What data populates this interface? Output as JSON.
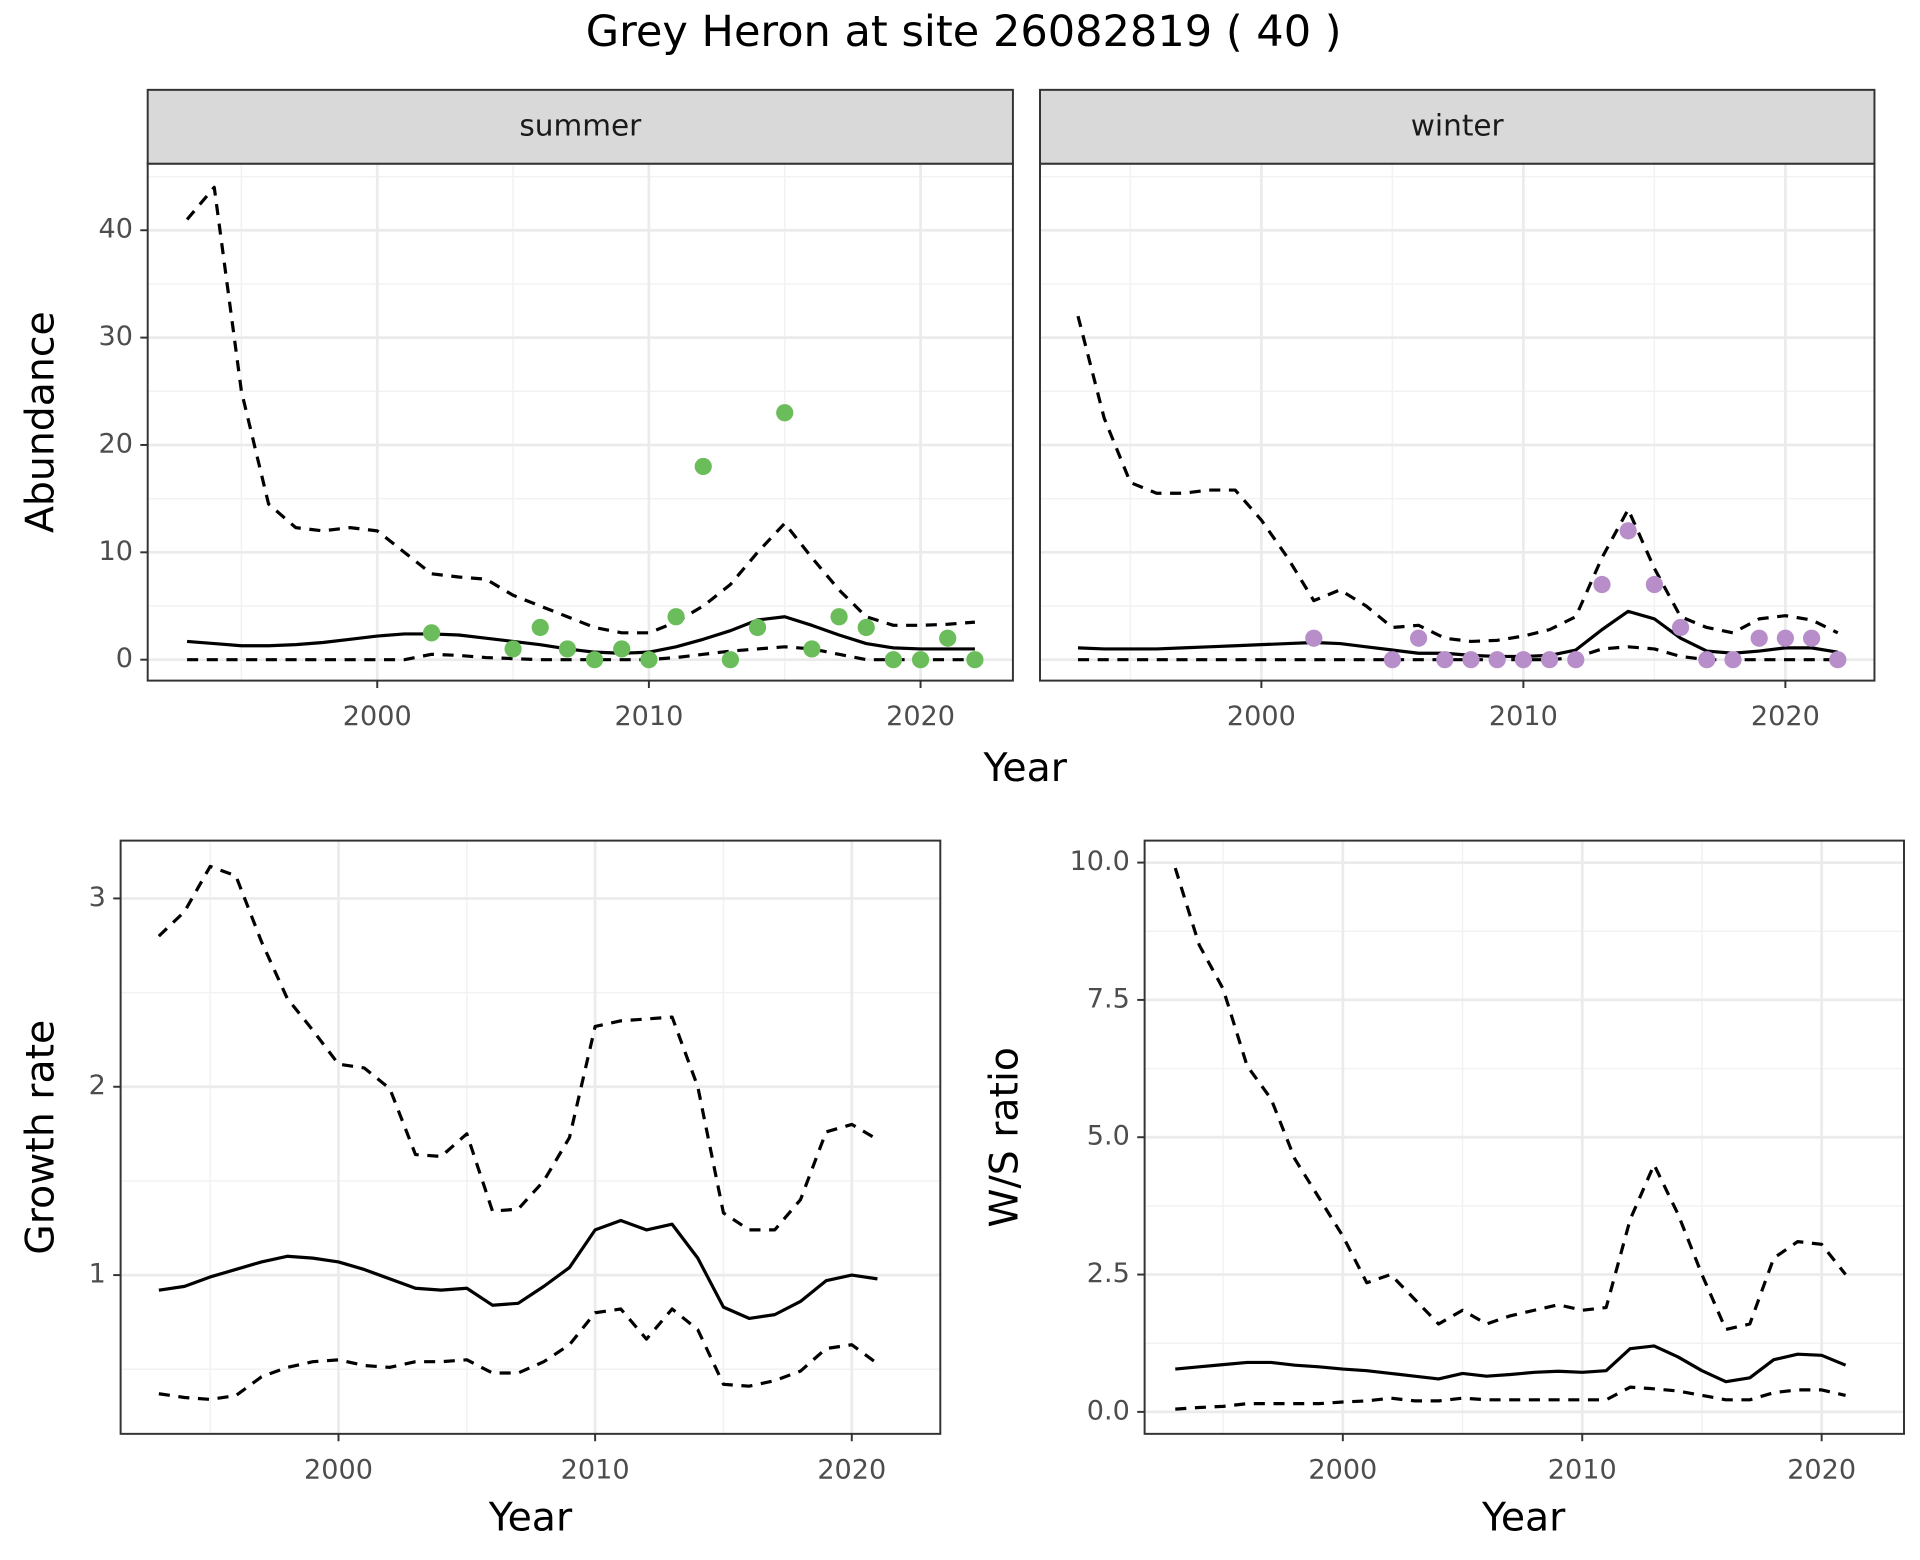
{
  "title": "Grey Heron at site 26082819 ( 40 )",
  "chart_data": [
    {
      "type": "facet",
      "ylabel": "Abundance",
      "xlabel": "Year",
      "xlim": [
        1991.55,
        2023.4
      ],
      "ylim": [
        -1.95,
        46.2
      ],
      "xticks": [
        2000,
        2010,
        2020
      ],
      "yticks": [
        0,
        10,
        20,
        30,
        40
      ],
      "minor_xticks": [
        1995,
        2005,
        2015
      ],
      "minor_yticks": [
        5,
        15,
        25,
        35,
        45
      ],
      "grid": true,
      "facets": [
        {
          "title": "summer",
          "x": [
            1993,
            1994,
            1995,
            1996,
            1997,
            1998,
            1999,
            2000,
            2001,
            2002,
            2003,
            2004,
            2005,
            2006,
            2007,
            2008,
            2009,
            2010,
            2011,
            2012,
            2013,
            2014,
            2015,
            2016,
            2017,
            2018,
            2019,
            2020,
            2021,
            2022
          ],
          "series": [
            {
              "style": "dashed",
              "color": "#000000",
              "values": [
                41,
                44,
                25,
                14.5,
                12.3,
                12,
                12.3,
                12,
                10,
                8,
                7.7,
                7.5,
                6,
                5,
                4,
                3,
                2.5,
                2.5,
                3.5,
                5,
                7,
                10,
                12.7,
                9.5,
                6.5,
                4,
                3.2,
                3.2,
                3.3,
                3.5
              ]
            },
            {
              "style": "solid",
              "color": "#000000",
              "values": [
                1.7,
                1.5,
                1.3,
                1.3,
                1.4,
                1.6,
                1.9,
                2.2,
                2.4,
                2.4,
                2.3,
                2.0,
                1.7,
                1.4,
                1.0,
                0.7,
                0.6,
                0.7,
                1.2,
                1.9,
                2.7,
                3.7,
                4.0,
                3.2,
                2.3,
                1.5,
                1.1,
                1.0,
                1.0,
                1.0
              ]
            },
            {
              "style": "dashed",
              "color": "#000000",
              "values": [
                0,
                0,
                0,
                0,
                0,
                0,
                0,
                0,
                0,
                0.5,
                0.4,
                0.2,
                0.1,
                0,
                0,
                0,
                0,
                0,
                0.2,
                0.5,
                0.8,
                1.0,
                1.2,
                1.0,
                0.5,
                0,
                0,
                0,
                0,
                0
              ]
            },
            {
              "style": "points",
              "color": "#6abd5a",
              "x": [
                2002,
                2005,
                2006,
                2007,
                2008,
                2009,
                2010,
                2011,
                2012,
                2013,
                2014,
                2015,
                2016,
                2017,
                2018,
                2019,
                2020,
                2021,
                2022
              ],
              "values": [
                2.5,
                1,
                3,
                1,
                0,
                1,
                0,
                4,
                18,
                0,
                3,
                23,
                1,
                4,
                3,
                0,
                0,
                2,
                0
              ]
            }
          ]
        },
        {
          "title": "winter",
          "x": [
            1993,
            1994,
            1995,
            1996,
            1997,
            1998,
            1999,
            2000,
            2001,
            2002,
            2003,
            2004,
            2005,
            2006,
            2007,
            2008,
            2009,
            2010,
            2011,
            2012,
            2013,
            2014,
            2015,
            2016,
            2017,
            2018,
            2019,
            2020,
            2021,
            2022
          ],
          "series": [
            {
              "style": "dashed",
              "color": "#000000",
              "values": [
                32,
                22.5,
                16.5,
                15.5,
                15.5,
                15.8,
                15.8,
                13,
                9.5,
                5.5,
                6.5,
                5,
                3,
                3.2,
                2,
                1.7,
                1.8,
                2.2,
                2.8,
                4,
                9.5,
                14,
                8.5,
                4,
                3,
                2.5,
                3.8,
                4.1,
                3.7,
                2.5
              ]
            },
            {
              "style": "solid",
              "color": "#000000",
              "values": [
                1.1,
                1.0,
                1.0,
                1.0,
                1.1,
                1.2,
                1.3,
                1.4,
                1.5,
                1.6,
                1.5,
                1.2,
                0.9,
                0.6,
                0.6,
                0.4,
                0.3,
                0.3,
                0.4,
                0.9,
                2.8,
                4.5,
                3.8,
                2.0,
                0.8,
                0.6,
                0.8,
                1.1,
                1.1,
                0.7
              ]
            },
            {
              "style": "dashed",
              "color": "#000000",
              "values": [
                0,
                0,
                0,
                0,
                0,
                0,
                0,
                0,
                0,
                0,
                0,
                0,
                0,
                0,
                0,
                0,
                0,
                0,
                0,
                0.2,
                1.0,
                1.2,
                1.0,
                0.3,
                0,
                0,
                0,
                0,
                0,
                0
              ]
            },
            {
              "style": "points",
              "color": "#b78ec9",
              "x": [
                2002,
                2005,
                2006,
                2007,
                2008,
                2009,
                2010,
                2011,
                2012,
                2013,
                2014,
                2015,
                2016,
                2017,
                2018,
                2019,
                2020,
                2021,
                2022
              ],
              "values": [
                2,
                0,
                2,
                0,
                0,
                0,
                0,
                0,
                0,
                7,
                12,
                7,
                3,
                0,
                0,
                2,
                2,
                2,
                0
              ]
            }
          ]
        }
      ]
    },
    {
      "type": "line",
      "ylabel": "Growth rate",
      "xlabel": "Year",
      "xlim": [
        1991.51,
        2023.45
      ],
      "ylim": [
        0.157,
        3.307
      ],
      "xticks": [
        2000,
        2010,
        2020
      ],
      "yticks": [
        1,
        2,
        3
      ],
      "minor_xticks": [
        1995,
        2005,
        2015
      ],
      "minor_yticks": [
        0.5,
        1.5,
        2.5
      ],
      "grid": true,
      "x": [
        1993,
        1994,
        1995,
        1996,
        1997,
        1998,
        1999,
        2000,
        2001,
        2002,
        2003,
        2004,
        2005,
        2006,
        2007,
        2008,
        2009,
        2010,
        2011,
        2012,
        2013,
        2014,
        2015,
        2016,
        2017,
        2018,
        2019,
        2020,
        2021
      ],
      "series": [
        {
          "style": "dashed",
          "color": "#000000",
          "values": [
            2.8,
            2.93,
            3.17,
            3.12,
            2.77,
            2.47,
            2.3,
            2.12,
            2.1,
            1.99,
            1.64,
            1.63,
            1.75,
            1.34,
            1.35,
            1.5,
            1.73,
            2.32,
            2.35,
            2.36,
            2.37,
            2.0,
            1.33,
            1.24,
            1.24,
            1.4,
            1.76,
            1.8,
            1.72
          ]
        },
        {
          "style": "solid",
          "color": "#000000",
          "values": [
            0.92,
            0.94,
            0.99,
            1.03,
            1.07,
            1.1,
            1.09,
            1.07,
            1.03,
            0.98,
            0.93,
            0.92,
            0.93,
            0.84,
            0.85,
            0.94,
            1.04,
            1.24,
            1.29,
            1.24,
            1.27,
            1.09,
            0.83,
            0.77,
            0.79,
            0.86,
            0.97,
            1.0,
            0.98
          ]
        },
        {
          "style": "dashed",
          "color": "#000000",
          "values": [
            0.37,
            0.35,
            0.34,
            0.36,
            0.46,
            0.51,
            0.54,
            0.55,
            0.52,
            0.51,
            0.54,
            0.54,
            0.55,
            0.48,
            0.48,
            0.54,
            0.63,
            0.8,
            0.82,
            0.66,
            0.82,
            0.71,
            0.42,
            0.41,
            0.44,
            0.49,
            0.61,
            0.63,
            0.53
          ]
        }
      ]
    },
    {
      "type": "line",
      "ylabel": "W/S ratio",
      "xlabel": "Year",
      "xlim": [
        1991.72,
        2023.44
      ],
      "ylim": [
        -0.4,
        10.4
      ],
      "xticks": [
        2000,
        2010,
        2020
      ],
      "yticks": [
        {
          "value": 0,
          "label": "0.0"
        },
        {
          "value": 2.5,
          "label": "2.5"
        },
        {
          "value": 5,
          "label": "5.0"
        },
        {
          "value": 7.5,
          "label": "7.5"
        },
        {
          "value": 10,
          "label": "10.0"
        }
      ],
      "minor_xticks": [
        1995,
        2005,
        2015
      ],
      "minor_yticks": [
        1.25,
        3.75,
        6.25,
        8.75
      ],
      "grid": true,
      "x": [
        1993,
        1994,
        1995,
        1996,
        1997,
        1998,
        1999,
        2000,
        2001,
        2002,
        2003,
        2004,
        2005,
        2006,
        2007,
        2008,
        2009,
        2010,
        2011,
        2012,
        2013,
        2014,
        2015,
        2016,
        2017,
        2018,
        2019,
        2020,
        2021
      ],
      "series": [
        {
          "style": "dashed",
          "color": "#000000",
          "values": [
            9.9,
            8.5,
            7.7,
            6.3,
            5.7,
            4.6,
            3.9,
            3.2,
            2.35,
            2.5,
            2.05,
            1.6,
            1.85,
            1.6,
            1.75,
            1.85,
            1.95,
            1.85,
            1.9,
            3.5,
            4.5,
            3.6,
            2.5,
            1.5,
            1.6,
            2.8,
            3.1,
            3.05,
            2.5
          ]
        },
        {
          "style": "solid",
          "color": "#000000",
          "values": [
            0.78,
            0.82,
            0.86,
            0.9,
            0.9,
            0.85,
            0.82,
            0.78,
            0.75,
            0.7,
            0.65,
            0.6,
            0.7,
            0.65,
            0.68,
            0.72,
            0.74,
            0.72,
            0.75,
            1.15,
            1.2,
            1.0,
            0.75,
            0.55,
            0.62,
            0.95,
            1.05,
            1.03,
            0.85
          ]
        },
        {
          "style": "dashed",
          "color": "#000000",
          "values": [
            0.05,
            0.08,
            0.1,
            0.15,
            0.15,
            0.15,
            0.15,
            0.18,
            0.2,
            0.25,
            0.2,
            0.2,
            0.25,
            0.22,
            0.22,
            0.22,
            0.22,
            0.22,
            0.22,
            0.45,
            0.42,
            0.38,
            0.3,
            0.22,
            0.22,
            0.35,
            0.4,
            0.4,
            0.3
          ]
        }
      ]
    }
  ]
}
